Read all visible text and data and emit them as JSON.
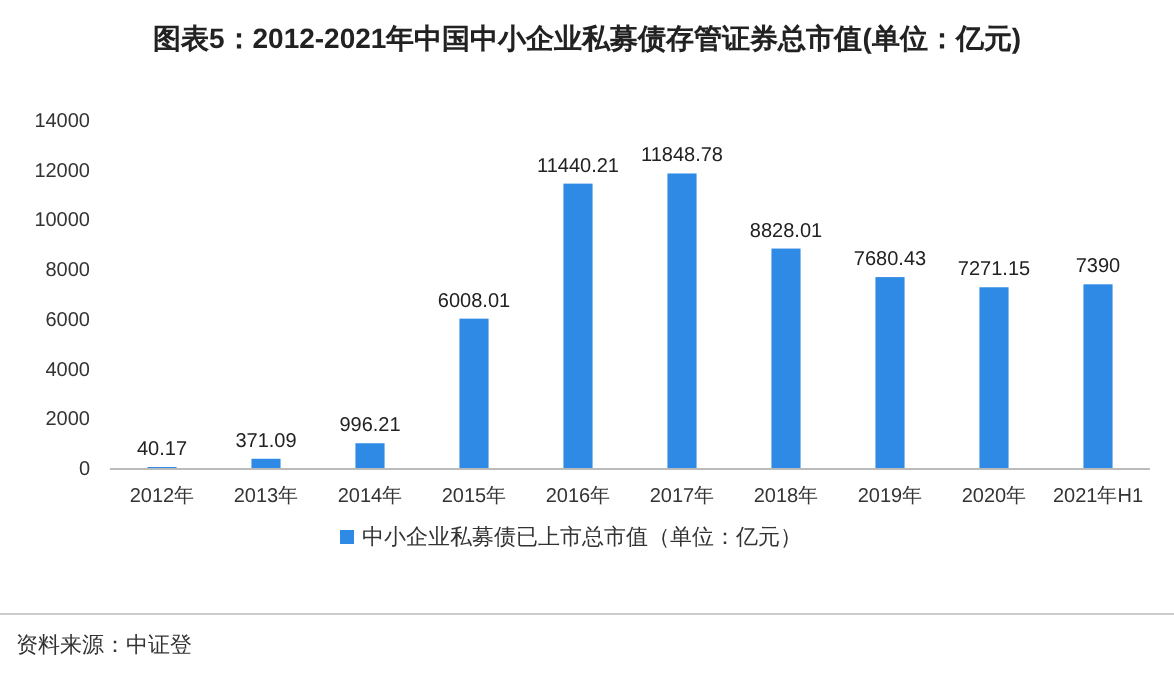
{
  "chart_data": {
    "type": "bar",
    "title": "图表5：2012-2021年中国中小企业私募债存管证券总市值(单位：亿元)",
    "categories": [
      "2012年",
      "2013年",
      "2014年",
      "2015年",
      "2016年",
      "2017年",
      "2018年",
      "2019年",
      "2020年",
      "2021年H1"
    ],
    "series": [
      {
        "name": "中小企业私募债已上市总市值（单位：亿元）",
        "color": "#2f8ae5",
        "values": [
          40.17,
          371.09,
          996.21,
          6008.01,
          11440.21,
          11848.78,
          8828.01,
          7680.43,
          7271.15,
          7390
        ]
      }
    ],
    "ylim": [
      0,
      14000
    ],
    "yticks": [
      0,
      2000,
      4000,
      6000,
      8000,
      10000,
      12000,
      14000
    ],
    "data_labels": true,
    "legend": "bottom",
    "annotations": [
      "资料来源：中证登"
    ]
  }
}
